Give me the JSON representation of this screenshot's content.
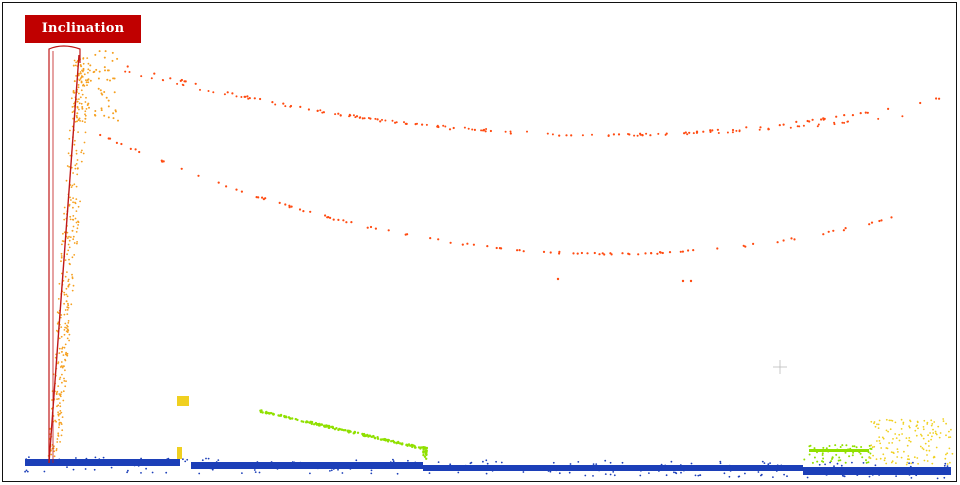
{
  "label": {
    "text": "Inclination"
  },
  "colors": {
    "label_bg": "#c00000",
    "frame": "#111111",
    "pole_points": "#f5a020",
    "wire_points": "#ff4a10",
    "ground_points": "#1c3fb8",
    "vegetation_points": "#90e000",
    "debris_points": "#f0d020",
    "inclination_marker": "#c01818"
  },
  "layers": [
    {
      "name": "pole",
      "color_key": "pole_points"
    },
    {
      "name": "overhead-wires",
      "color_key": "wire_points"
    },
    {
      "name": "ground",
      "color_key": "ground_points"
    },
    {
      "name": "fence-barrier",
      "color_key": "vegetation_points"
    },
    {
      "name": "small-objects",
      "color_key": "debris_points"
    }
  ]
}
